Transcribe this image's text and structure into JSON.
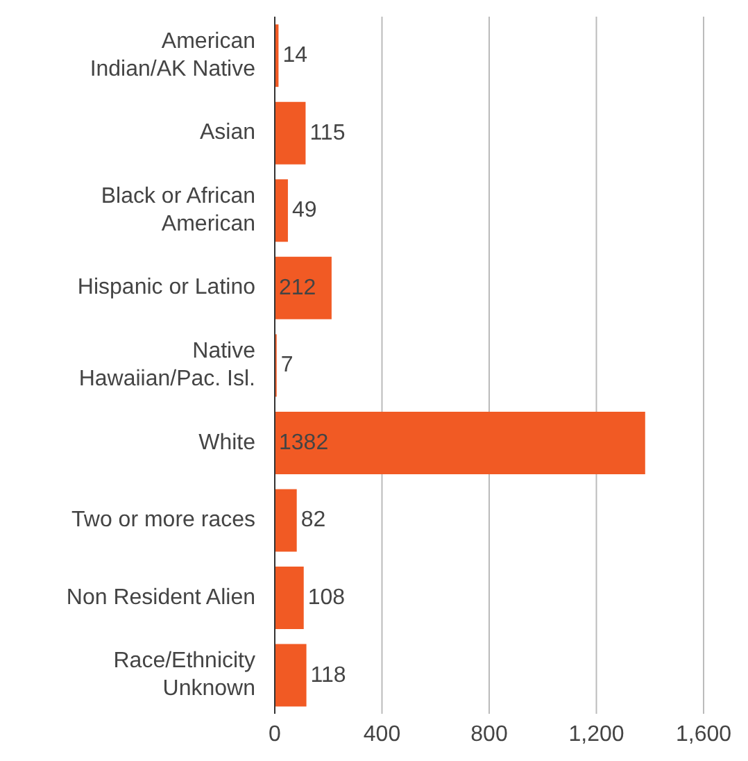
{
  "chart_data": {
    "type": "bar",
    "orientation": "horizontal",
    "categories": [
      "American Indian/AK Native",
      "Asian",
      "Black or African American",
      "Hispanic or Latino",
      "Native Hawaiian/Pac. Isl.",
      "White",
      "Two or more races",
      "Non Resident Alien",
      "Race/Ethnicity Unknown"
    ],
    "values": [
      14,
      115,
      49,
      212,
      7,
      1382,
      82,
      108,
      118
    ],
    "color": "#f15a24",
    "xlim": [
      0,
      1600
    ],
    "xticks": [
      0,
      400,
      800,
      {
        "value": 1200,
        "label": "1,200"
      },
      {
        "value": 1600,
        "label": "1,600"
      }
    ],
    "grid": "x",
    "data_labels": true
  }
}
